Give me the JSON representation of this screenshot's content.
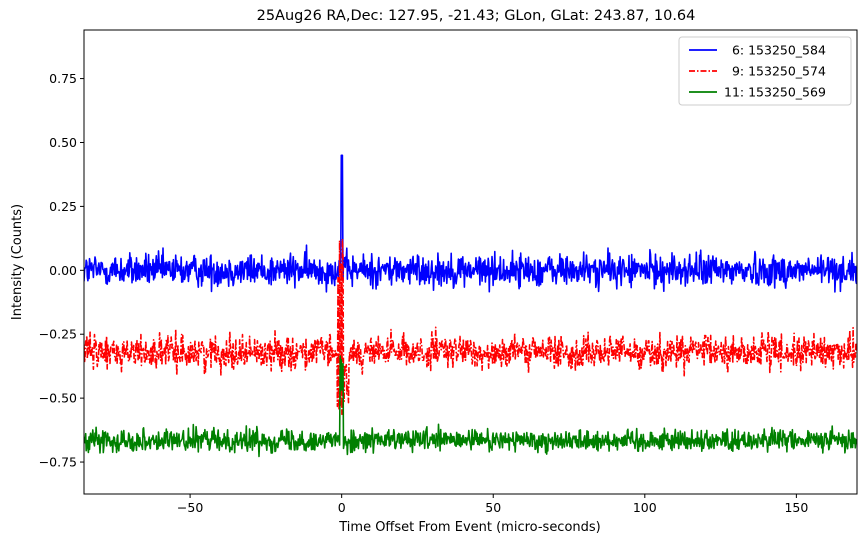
{
  "chart_data": {
    "type": "line",
    "title": "25Aug26 RA,Dec:  127.95, -21.43; GLon, GLat:  243.87,  10.64",
    "xlabel": "Time Offset From Event (micro-seconds)",
    "ylabel": "Intensity (Counts)",
    "xlim": [
      -85,
      170
    ],
    "ylim": [
      -0.875,
      0.94
    ],
    "xticks": [
      -50,
      0,
      50,
      100,
      150
    ],
    "xtick_labels": [
      "−50",
      "0",
      "50",
      "100",
      "150"
    ],
    "yticks": [
      -0.75,
      -0.5,
      -0.25,
      0.0,
      0.25,
      0.5,
      0.75
    ],
    "ytick_labels": [
      "−0.75",
      "−0.50",
      "−0.25",
      "0.00",
      "0.25",
      "0.50",
      "0.75"
    ],
    "legend_position": "top-right",
    "series": [
      {
        "name": "  6: 153250_584",
        "color": "#0000ff",
        "style": "solid",
        "baseline": 0.0,
        "noise_sigma": 0.045,
        "peak": {
          "x": 0.0,
          "value": 0.45
        },
        "range": [
          -0.19,
          0.45
        ]
      },
      {
        "name": "  9: 153250_574",
        "color": "#ff0000",
        "style": "dashdot",
        "baseline": -0.32,
        "noise_sigma": 0.045,
        "peak": {
          "x": 0.5,
          "value": 0.13
        },
        "range": [
          -0.6,
          0.13
        ]
      },
      {
        "name": "11: 153250_569",
        "color": "#008000",
        "style": "solid",
        "baseline": -0.665,
        "noise_sigma": 0.03,
        "peak": {
          "x": 0.0,
          "value": -0.3
        },
        "range": [
          -0.79,
          -0.3
        ]
      }
    ]
  }
}
